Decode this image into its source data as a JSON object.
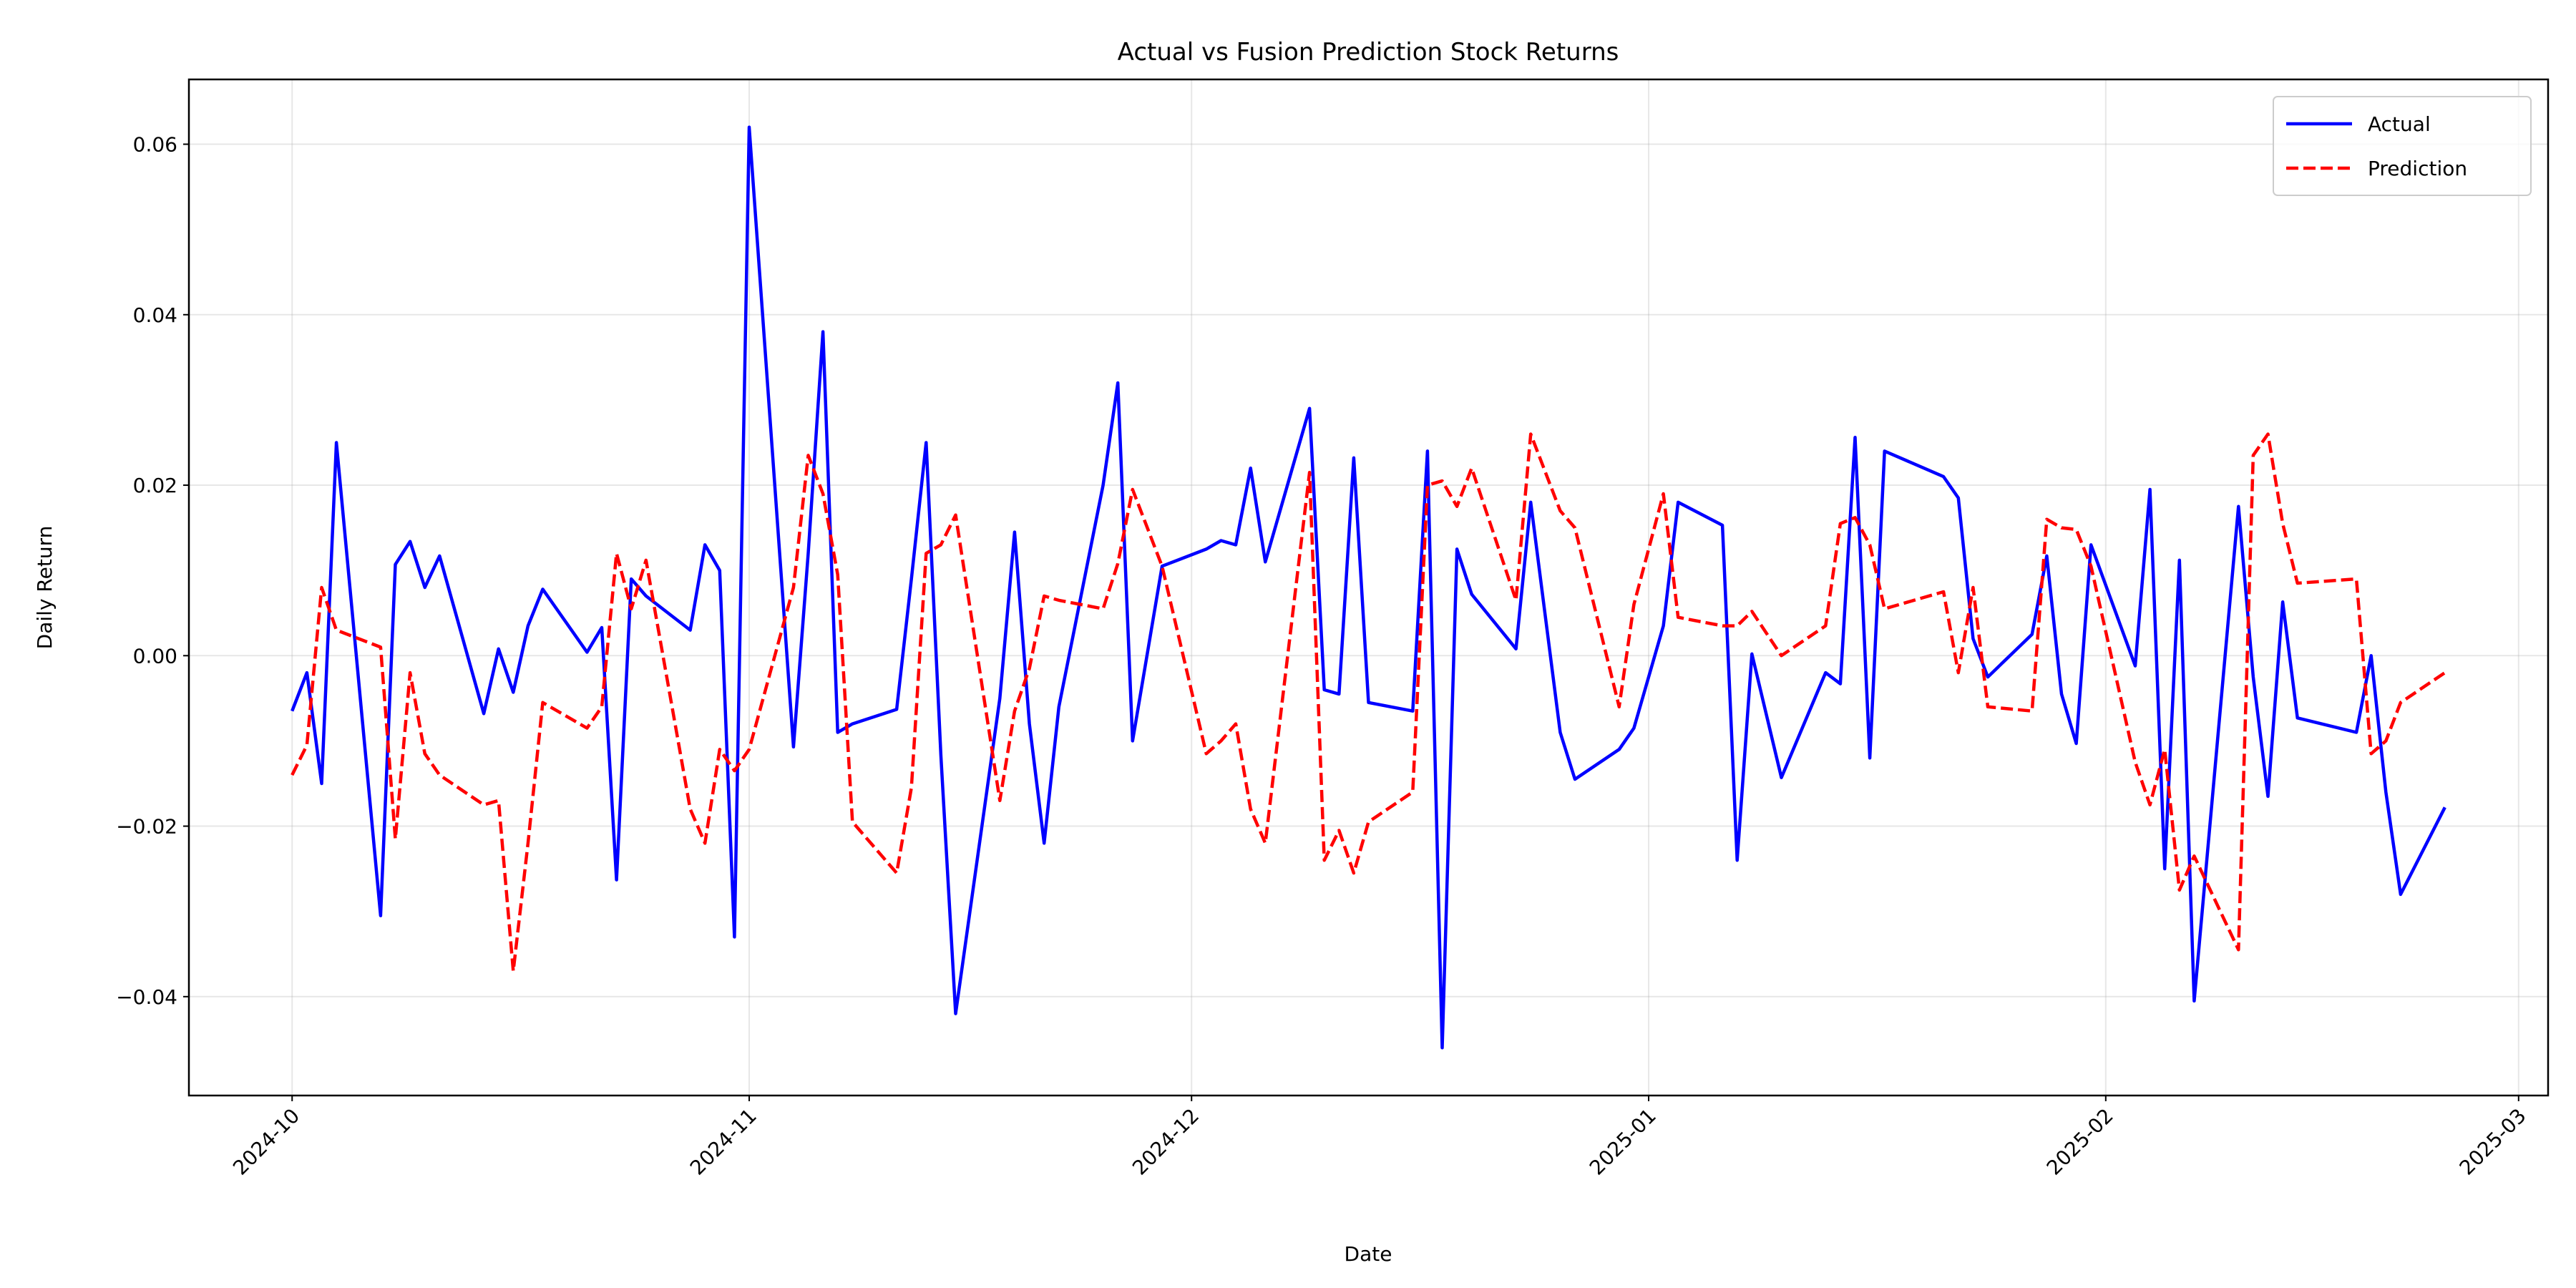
{
  "chart_data": {
    "type": "line",
    "title": "Actual vs Fusion Prediction Stock Returns",
    "x_label": "Date",
    "y_label": "Daily Return",
    "x": [
      "2024-10-01",
      "2024-10-02",
      "2024-10-03",
      "2024-10-04",
      "2024-10-07",
      "2024-10-08",
      "2024-10-09",
      "2024-10-10",
      "2024-10-11",
      "2024-10-14",
      "2024-10-15",
      "2024-10-16",
      "2024-10-17",
      "2024-10-18",
      "2024-10-21",
      "2024-10-22",
      "2024-10-23",
      "2024-10-24",
      "2024-10-25",
      "2024-10-28",
      "2024-10-29",
      "2024-10-30",
      "2024-10-31",
      "2024-11-01",
      "2024-11-04",
      "2024-11-05",
      "2024-11-06",
      "2024-11-07",
      "2024-11-08",
      "2024-11-11",
      "2024-11-12",
      "2024-11-13",
      "2024-11-14",
      "2024-11-15",
      "2024-11-18",
      "2024-11-19",
      "2024-11-20",
      "2024-11-21",
      "2024-11-22",
      "2024-11-25",
      "2024-11-26",
      "2024-11-27",
      "2024-11-29",
      "2024-12-02",
      "2024-12-03",
      "2024-12-04",
      "2024-12-05",
      "2024-12-06",
      "2024-12-09",
      "2024-12-10",
      "2024-12-11",
      "2024-12-12",
      "2024-12-13",
      "2024-12-16",
      "2024-12-17",
      "2024-12-18",
      "2024-12-19",
      "2024-12-20",
      "2024-12-23",
      "2024-12-24",
      "2024-12-26",
      "2024-12-27",
      "2024-12-30",
      "2024-12-31",
      "2025-01-02",
      "2025-01-03",
      "2025-01-06",
      "2025-01-07",
      "2025-01-08",
      "2025-01-10",
      "2025-01-13",
      "2025-01-14",
      "2025-01-15",
      "2025-01-16",
      "2025-01-17",
      "2025-01-21",
      "2025-01-22",
      "2025-01-23",
      "2025-01-24",
      "2025-01-27",
      "2025-01-28",
      "2025-01-29",
      "2025-01-30",
      "2025-01-31",
      "2025-02-03",
      "2025-02-04",
      "2025-02-05",
      "2025-02-06",
      "2025-02-07",
      "2025-02-10",
      "2025-02-11",
      "2025-02-12",
      "2025-02-13",
      "2025-02-14",
      "2025-02-18",
      "2025-02-19",
      "2025-02-20",
      "2025-02-21",
      "2025-02-24"
    ],
    "series": [
      {
        "name": "Actual",
        "color": "#0000ff",
        "linestyle": "solid",
        "values": [
          -0.0065,
          -0.002,
          -0.015,
          0.025,
          -0.0305,
          0.0107,
          0.0134,
          0.008,
          0.0117,
          -0.0068,
          0.0008,
          -0.0043,
          0.0035,
          0.0078,
          0.0004,
          0.0033,
          -0.0263,
          0.009,
          0.007,
          0.003,
          0.013,
          0.01,
          -0.033,
          0.062,
          -0.0107,
          0.012,
          0.038,
          -0.009,
          -0.008,
          -0.0063,
          0.009,
          0.025,
          -0.0117,
          -0.042,
          -0.005,
          0.0145,
          -0.008,
          -0.022,
          -0.006,
          0.02,
          0.032,
          -0.01,
          0.0105,
          0.0125,
          0.0135,
          0.013,
          0.022,
          0.011,
          0.029,
          -0.004,
          -0.0045,
          0.0232,
          -0.0055,
          -0.0065,
          0.024,
          -0.046,
          0.0125,
          0.0072,
          0.0008,
          0.018,
          -0.009,
          -0.0145,
          -0.011,
          -0.0085,
          0.0035,
          0.018,
          0.0153,
          -0.024,
          0.0002,
          -0.0143,
          -0.002,
          -0.0033,
          0.0256,
          -0.012,
          0.024,
          0.021,
          0.0185,
          0.002,
          -0.0025,
          0.0025,
          0.0117,
          -0.0045,
          -0.0103,
          0.013,
          -0.0012,
          0.0195,
          -0.025,
          0.0112,
          -0.0405,
          0.0175,
          -0.0025,
          -0.0165,
          0.0063,
          -0.0073,
          -0.009,
          0.0,
          -0.016,
          -0.028,
          -0.0178
        ]
      },
      {
        "name": "Prediction",
        "color": "#ff0000",
        "linestyle": "dashed",
        "values": [
          -0.014,
          -0.0105,
          0.008,
          0.003,
          0.001,
          -0.0215,
          -0.002,
          -0.0115,
          -0.014,
          -0.0175,
          -0.017,
          -0.037,
          -0.022,
          -0.0055,
          -0.0085,
          -0.006,
          0.012,
          0.0055,
          0.0112,
          -0.018,
          -0.022,
          -0.011,
          -0.0135,
          -0.011,
          0.008,
          0.0235,
          0.019,
          0.0095,
          -0.0195,
          -0.0255,
          -0.0155,
          0.012,
          0.013,
          0.0165,
          -0.017,
          -0.0065,
          -0.0015,
          0.007,
          0.0065,
          0.0055,
          0.0108,
          0.0195,
          0.0105,
          -0.0115,
          -0.01,
          -0.008,
          -0.018,
          -0.022,
          0.0215,
          -0.024,
          -0.0205,
          -0.0255,
          -0.0195,
          -0.016,
          0.02,
          0.0205,
          0.0175,
          0.022,
          0.0065,
          0.026,
          0.017,
          0.015,
          -0.006,
          0.006,
          0.019,
          0.0045,
          0.0035,
          0.0035,
          0.0052,
          0.0,
          0.0035,
          0.0155,
          0.0162,
          0.013,
          0.0055,
          0.0075,
          -0.002,
          0.008,
          -0.006,
          -0.0065,
          0.016,
          0.015,
          0.0148,
          0.0105,
          -0.0125,
          -0.0175,
          -0.011,
          -0.0275,
          -0.0235,
          -0.0345,
          0.0235,
          0.026,
          0.0155,
          0.0085,
          0.009,
          -0.0115,
          -0.01,
          -0.0055,
          -0.002
        ]
      }
    ],
    "xlim": [
      "2024-09-24",
      "2025-03-03"
    ],
    "xticks": [
      {
        "value": "2024-10-01",
        "label": "2024-10"
      },
      {
        "value": "2024-11-01",
        "label": "2024-11"
      },
      {
        "value": "2024-12-01",
        "label": "2024-12"
      },
      {
        "value": "2025-01-01",
        "label": "2025-01"
      },
      {
        "value": "2025-02-01",
        "label": "2025-02"
      },
      {
        "value": "2025-03-01",
        "label": "2025-03"
      }
    ],
    "ylim": [
      -0.0516,
      0.0676
    ],
    "yticks": [
      {
        "value": -0.04,
        "label": "−0.04"
      },
      {
        "value": -0.02,
        "label": "−0.02"
      },
      {
        "value": 0,
        "label": "0.00"
      },
      0.02,
      0.04,
      0.06
    ],
    "grid": true,
    "legend": "upper right"
  }
}
